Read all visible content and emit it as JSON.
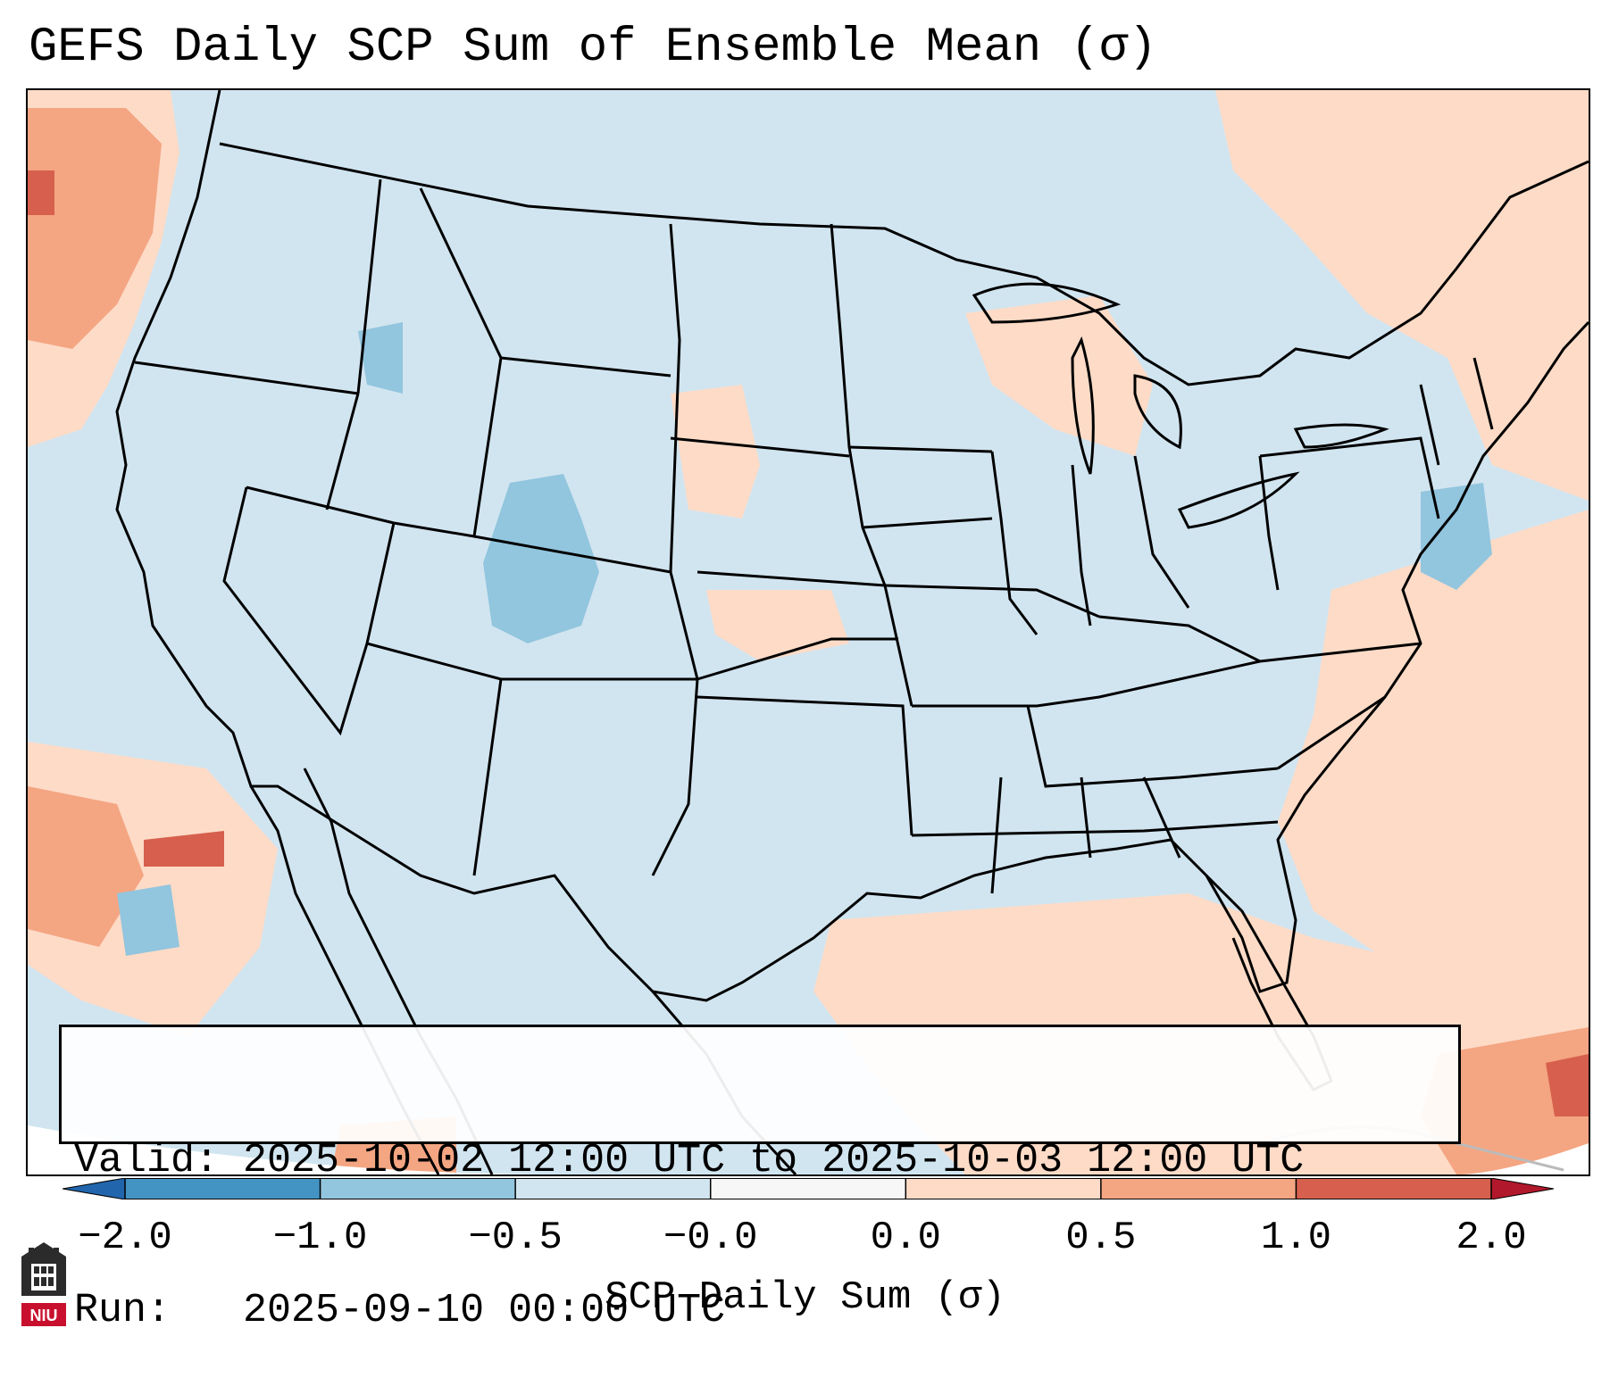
{
  "title": "GEFS Daily SCP Sum of Ensemble Mean (σ)",
  "info": {
    "valid_line": "Valid: 2025-10-02 12:00 UTC to 2025-10-03 12:00 UTC",
    "run_line": "Run:   2025-09-10 00:00 UTC"
  },
  "colorbar": {
    "label": "SCP Daily Sum (σ)",
    "ticks": [
      "−2.0",
      "−1.0",
      "−0.5",
      "−0.0",
      "0.0",
      "0.5",
      "1.0",
      "2.0"
    ],
    "colors": [
      "#4393c3",
      "#92c5de",
      "#d1e5f0",
      "#f7f7f7",
      "#fddbc7",
      "#f4a582",
      "#d6604d"
    ],
    "extend_low_color": "#2166ac",
    "extend_high_color": "#b2182b"
  },
  "map": {
    "background_color": "#d1e5f0",
    "region": "Contiguous United States"
  },
  "logo": {
    "text": "NIU",
    "color": "#c8102e"
  }
}
